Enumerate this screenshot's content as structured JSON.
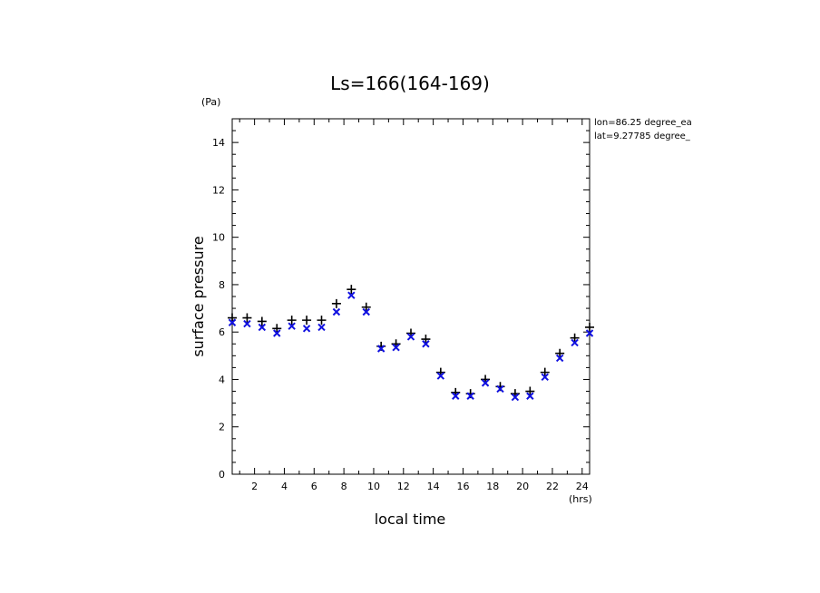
{
  "chart_data": {
    "type": "scatter",
    "title": "Ls=166(164-169)",
    "xlabel": "local time",
    "ylabel": "surface pressure",
    "x_unit": "(hrs)",
    "y_unit": "(Pa)",
    "xlim": [
      0.5,
      24.5
    ],
    "ylim": [
      0,
      15
    ],
    "x_ticks": [
      2,
      4,
      6,
      8,
      10,
      12,
      14,
      16,
      18,
      20,
      22,
      24
    ],
    "y_ticks": [
      0,
      2,
      4,
      6,
      8,
      10,
      12,
      14
    ],
    "annotations": [
      "lon=86.25 degree_ea",
      "lat=9.27785 degree_"
    ],
    "grid": false,
    "series": [
      {
        "marker": "+",
        "color": "#000000",
        "x": [
          0.5,
          1.5,
          2.5,
          3.5,
          4.5,
          5.5,
          6.5,
          7.5,
          8.5,
          9.5,
          10.5,
          11.5,
          12.5,
          13.5,
          14.5,
          15.5,
          16.5,
          17.5,
          18.5,
          19.5,
          20.5,
          21.5,
          22.5,
          23.5,
          24.5
        ],
        "values": [
          6.6,
          6.6,
          6.45,
          6.15,
          6.5,
          6.5,
          6.5,
          7.2,
          7.8,
          7.05,
          5.4,
          5.5,
          5.95,
          5.7,
          4.3,
          3.45,
          3.4,
          4.0,
          3.7,
          3.4,
          3.5,
          4.3,
          5.1,
          5.75,
          6.2
        ]
      },
      {
        "marker": "x",
        "color": "#1010e0",
        "x": [
          0.5,
          1.5,
          2.5,
          3.5,
          4.5,
          5.5,
          6.5,
          7.5,
          8.5,
          9.5,
          10.5,
          11.5,
          12.5,
          13.5,
          14.5,
          15.5,
          16.5,
          17.5,
          18.5,
          19.5,
          20.5,
          21.5,
          22.5,
          23.5,
          24.5
        ],
        "values": [
          6.4,
          6.35,
          6.2,
          5.95,
          6.25,
          6.15,
          6.2,
          6.85,
          7.55,
          6.85,
          5.3,
          5.35,
          5.8,
          5.5,
          4.15,
          3.3,
          3.3,
          3.85,
          3.6,
          3.25,
          3.3,
          4.1,
          4.9,
          5.55,
          5.95
        ]
      }
    ]
  }
}
